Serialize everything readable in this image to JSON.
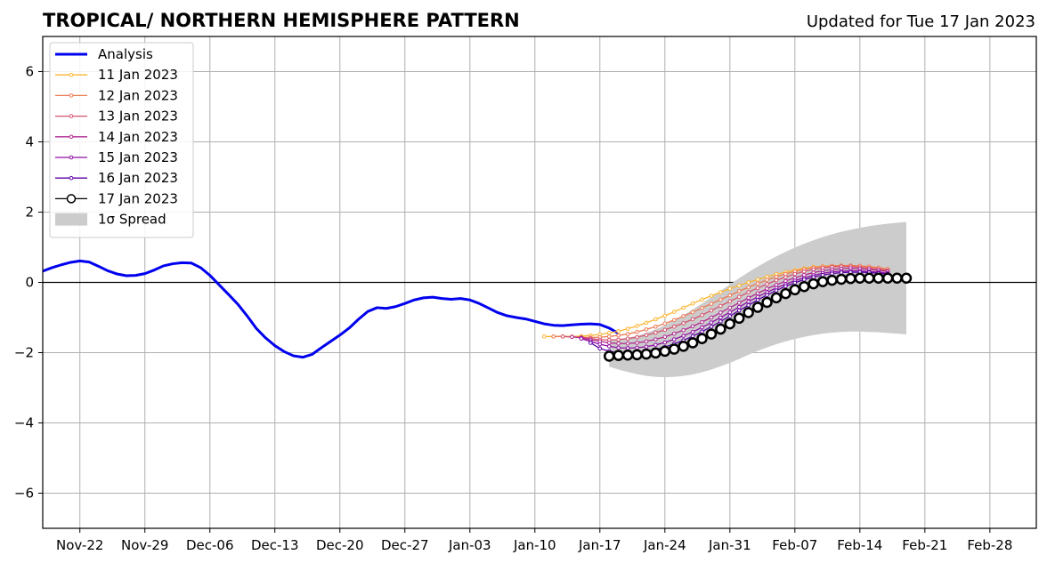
{
  "chart_data": {
    "type": "line",
    "title": "TROPICAL/ NORTHERN HEMISPHERE PATTERN",
    "subtitle": "Updated for Tue 17 Jan 2023",
    "xlabel": "",
    "ylabel": "",
    "xlim": [
      "2022-11-18",
      "2023-03-05"
    ],
    "ylim": [
      -7,
      7
    ],
    "grid": true,
    "zero_line": true,
    "x_ticks": [
      "Nov-22",
      "Nov-29",
      "Dec-06",
      "Dec-13",
      "Dec-20",
      "Dec-27",
      "Jan-03",
      "Jan-10",
      "Jan-17",
      "Jan-24",
      "Jan-31",
      "Feb-07",
      "Feb-14",
      "Feb-21",
      "Feb-28"
    ],
    "y_ticks": [
      "6",
      "4",
      "2",
      "0",
      "−2",
      "−4",
      "−6"
    ],
    "legend_position": "top-left",
    "legend": [
      "Analysis",
      "11 Jan 2023",
      "12 Jan 2023",
      "13 Jan 2023",
      "14 Jan 2023",
      "15 Jan 2023",
      "16 Jan 2023",
      "17 Jan 2023",
      "1σ Spread"
    ],
    "analysis": {
      "name": "Analysis",
      "color": "#0000ee",
      "start": "2022-11-18",
      "values": [
        0.32,
        0.42,
        0.5,
        0.57,
        0.61,
        0.58,
        0.46,
        0.33,
        0.24,
        0.19,
        0.2,
        0.25,
        0.35,
        0.47,
        0.53,
        0.56,
        0.55,
        0.42,
        0.2,
        -0.07,
        -0.34,
        -0.62,
        -0.95,
        -1.31,
        -1.58,
        -1.8,
        -1.97,
        -2.09,
        -2.13,
        -2.05,
        -1.86,
        -1.68,
        -1.5,
        -1.3,
        -1.05,
        -0.83,
        -0.72,
        -0.74,
        -0.69,
        -0.6,
        -0.5,
        -0.44,
        -0.42,
        -0.46,
        -0.48,
        -0.46,
        -0.5,
        -0.6,
        -0.73,
        -0.86,
        -0.95,
        -1.0,
        -1.04,
        -1.11,
        -1.18,
        -1.22,
        -1.23,
        -1.21,
        -1.19,
        -1.18,
        -1.2,
        -1.3,
        -1.45
      ]
    },
    "forecasts": [
      {
        "name": "11 Jan 2023",
        "color": "#fdb42f",
        "start": "2023-01-11",
        "values": [
          -1.54,
          -1.54,
          -1.54,
          -1.54,
          -1.53,
          -1.51,
          -1.48,
          -1.44,
          -1.39,
          -1.32,
          -1.24,
          -1.15,
          -1.05,
          -0.95,
          -0.84,
          -0.72,
          -0.6,
          -0.49,
          -0.38,
          -0.28,
          -0.18,
          -0.09,
          0.0,
          0.08,
          0.16,
          0.23,
          0.29,
          0.35,
          0.4,
          0.44,
          0.46,
          0.47,
          0.47,
          0.46,
          0.45,
          0.43,
          0.4,
          0.36
        ]
      },
      {
        "name": "12 Jan 2023",
        "color": "#ed7953",
        "start": "2023-01-12",
        "values": [
          -1.54,
          -1.54,
          -1.55,
          -1.56,
          -1.57,
          -1.56,
          -1.54,
          -1.51,
          -1.47,
          -1.41,
          -1.34,
          -1.26,
          -1.17,
          -1.07,
          -0.96,
          -0.85,
          -0.73,
          -0.61,
          -0.49,
          -0.37,
          -0.25,
          -0.14,
          -0.03,
          0.07,
          0.16,
          0.24,
          0.31,
          0.37,
          0.42,
          0.45,
          0.47,
          0.48,
          0.48,
          0.47,
          0.45,
          0.42,
          0.38
        ]
      },
      {
        "name": "13 Jan 2023",
        "color": "#d5536f",
        "start": "2023-01-13",
        "values": [
          -1.54,
          -1.55,
          -1.57,
          -1.6,
          -1.63,
          -1.64,
          -1.63,
          -1.6,
          -1.56,
          -1.5,
          -1.43,
          -1.35,
          -1.26,
          -1.16,
          -1.05,
          -0.93,
          -0.8,
          -0.67,
          -0.54,
          -0.41,
          -0.28,
          -0.16,
          -0.05,
          0.06,
          0.15,
          0.24,
          0.31,
          0.37,
          0.41,
          0.44,
          0.45,
          0.45,
          0.43,
          0.41,
          0.38,
          0.34
        ]
      },
      {
        "name": "14 Jan 2023",
        "color": "#b12a90",
        "start": "2023-01-14",
        "values": [
          -1.55,
          -1.58,
          -1.63,
          -1.68,
          -1.72,
          -1.74,
          -1.74,
          -1.72,
          -1.68,
          -1.62,
          -1.55,
          -1.46,
          -1.36,
          -1.25,
          -1.13,
          -1.0,
          -0.86,
          -0.72,
          -0.58,
          -0.44,
          -0.31,
          -0.18,
          -0.07,
          0.04,
          0.13,
          0.21,
          0.28,
          0.33,
          0.37,
          0.39,
          0.4,
          0.39,
          0.37,
          0.34,
          0.31
        ]
      },
      {
        "name": "15 Jan 2023",
        "color": "#8f0da4",
        "start": "2023-01-15",
        "values": [
          -1.6,
          -1.68,
          -1.76,
          -1.82,
          -1.86,
          -1.87,
          -1.86,
          -1.83,
          -1.78,
          -1.71,
          -1.62,
          -1.52,
          -1.41,
          -1.28,
          -1.14,
          -1.0,
          -0.85,
          -0.7,
          -0.55,
          -0.41,
          -0.28,
          -0.16,
          -0.05,
          0.05,
          0.13,
          0.2,
          0.26,
          0.3,
          0.32,
          0.33,
          0.33,
          0.31,
          0.29,
          0.26
        ]
      },
      {
        "name": "16 Jan 2023",
        "color": "#5b02a3",
        "start": "2023-01-16",
        "values": [
          -1.72,
          -1.88,
          -1.96,
          -2.0,
          -2.01,
          -1.99,
          -1.96,
          -1.91,
          -1.84,
          -1.75,
          -1.65,
          -1.53,
          -1.4,
          -1.26,
          -1.11,
          -0.96,
          -0.8,
          -0.65,
          -0.5,
          -0.36,
          -0.23,
          -0.11,
          -0.01,
          0.08,
          0.15,
          0.21,
          0.25,
          0.28,
          0.29,
          0.29,
          0.28,
          0.26,
          0.24
        ]
      },
      {
        "name": "17 Jan 2023",
        "color": "#000000",
        "start": "2023-01-18",
        "values": [
          -2.1,
          -2.08,
          -2.07,
          -2.06,
          -2.04,
          -2.01,
          -1.96,
          -1.9,
          -1.82,
          -1.72,
          -1.6,
          -1.47,
          -1.33,
          -1.18,
          -1.02,
          -0.86,
          -0.71,
          -0.57,
          -0.44,
          -0.32,
          -0.21,
          -0.12,
          -0.04,
          0.02,
          0.06,
          0.09,
          0.11,
          0.12,
          0.12,
          0.12,
          0.12,
          0.12,
          0.12
        ]
      }
    ],
    "spread": {
      "name": "1σ Spread",
      "color": "#cccccc",
      "start": "2023-01-18",
      "upper": [
        -1.65,
        -1.62,
        -1.58,
        -1.52,
        -1.44,
        -1.34,
        -1.22,
        -1.08,
        -0.93,
        -0.77,
        -0.6,
        -0.42,
        -0.24,
        -0.06,
        0.12,
        0.29,
        0.45,
        0.6,
        0.74,
        0.87,
        0.99,
        1.1,
        1.2,
        1.29,
        1.37,
        1.44,
        1.5,
        1.55,
        1.6,
        1.64,
        1.67,
        1.7,
        1.72
      ],
      "lower": [
        -2.4,
        -2.48,
        -2.55,
        -2.61,
        -2.66,
        -2.69,
        -2.7,
        -2.69,
        -2.66,
        -2.62,
        -2.56,
        -2.48,
        -2.39,
        -2.29,
        -2.18,
        -2.06,
        -1.95,
        -1.85,
        -1.76,
        -1.68,
        -1.61,
        -1.55,
        -1.5,
        -1.46,
        -1.43,
        -1.41,
        -1.4,
        -1.4,
        -1.41,
        -1.42,
        -1.44,
        -1.46,
        -1.48
      ]
    }
  }
}
